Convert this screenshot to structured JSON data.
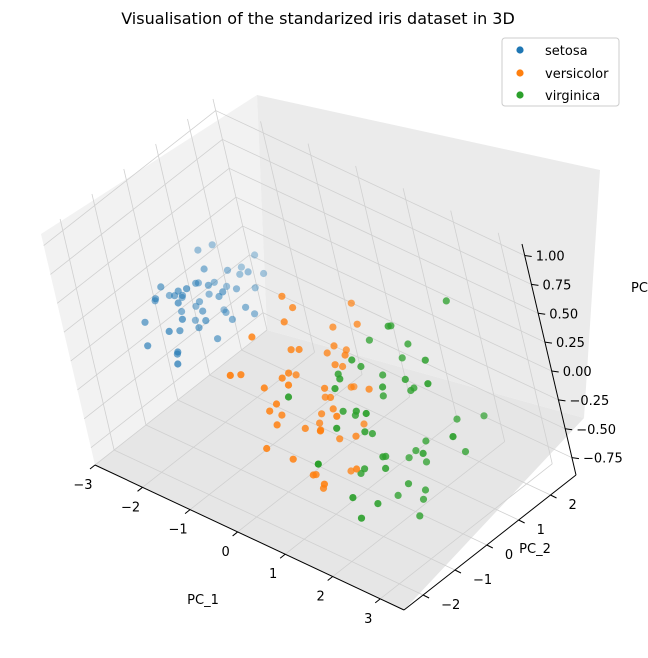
{
  "chart_data": {
    "type": "scatter",
    "projection": "3d",
    "title": "Visualisation of the standarized iris dataset in 3D",
    "xlabel": "PC_1",
    "ylabel": "PC_2",
    "zlabel": "PC",
    "xlim": [
      -3,
      3.5
    ],
    "ylim": [
      -2.6,
      2.8
    ],
    "zlim": [
      -0.9,
      1.1
    ],
    "xticks": [
      "−3",
      "−2",
      "−1",
      "0",
      "1",
      "2",
      "3"
    ],
    "yticks": [
      "−2",
      "−1",
      "0",
      "1",
      "2"
    ],
    "zticks": [
      "−0.75",
      "−0.50",
      "−0.25",
      "0.00",
      "0.25",
      "0.50",
      "0.75",
      "1.00"
    ],
    "grid": true,
    "legend_position": "top-right",
    "series": [
      {
        "name": "setosa",
        "color": "#1f77b4",
        "points": [
          [
            -2.7,
            -0.3,
            0.1
          ],
          [
            -2.4,
            0.6,
            0.1
          ],
          [
            -2.9,
            -0.1,
            0.0
          ],
          [
            -2.6,
            0.2,
            -0.1
          ],
          [
            -2.2,
            -0.6,
            -0.2
          ],
          [
            -2.5,
            0.9,
            0.3
          ],
          [
            -2.1,
            0.2,
            0.0
          ],
          [
            -2.3,
            -0.3,
            -0.1
          ],
          [
            -2.0,
            0.4,
            0.2
          ],
          [
            -2.1,
            0.0,
            -0.1
          ],
          [
            -2.3,
            0.7,
            0.0
          ],
          [
            -2.2,
            0.3,
            0.2
          ],
          [
            -1.9,
            0.5,
            0.1
          ],
          [
            -2.5,
            0.4,
            -0.2
          ],
          [
            -2.0,
            -0.2,
            0.3
          ],
          [
            -2.4,
            0.1,
            0.1
          ],
          [
            -1.8,
            0.6,
            -0.1
          ],
          [
            -2.6,
            0.3,
            0.0
          ],
          [
            -2.2,
            0.8,
            0.1
          ],
          [
            -2.0,
            1.0,
            0.2
          ],
          [
            -1.9,
            0.2,
            -0.2
          ],
          [
            -2.1,
            0.5,
            0.3
          ],
          [
            -2.3,
            -0.1,
            0.2
          ],
          [
            -2.0,
            0.7,
            -0.1
          ],
          [
            -1.8,
            0.9,
            0.1
          ],
          [
            -1.7,
            0.4,
            0.2
          ],
          [
            -2.2,
            1.1,
            0.0
          ],
          [
            -2.4,
            -0.4,
            -0.3
          ],
          [
            -1.6,
            0.8,
            0.0
          ],
          [
            -2.0,
            1.3,
            0.1
          ],
          [
            -1.9,
            0.0,
            0.0
          ],
          [
            -2.7,
            -0.8,
            -0.2
          ],
          [
            -2.5,
            0.5,
            -0.1
          ],
          [
            -2.8,
            0.2,
            0.0
          ],
          [
            -2.0,
            -0.5,
            0.1
          ],
          [
            -1.7,
            1.2,
            0.2
          ],
          [
            -2.1,
            1.5,
            0.1
          ],
          [
            -1.8,
            1.4,
            0.0
          ],
          [
            -2.3,
            1.0,
            -0.2
          ],
          [
            -2.6,
            -0.2,
            0.2
          ],
          [
            -2.9,
            -0.5,
            -0.1
          ],
          [
            -2.4,
            1.2,
            0.3
          ],
          [
            -2.2,
            -0.7,
            0.0
          ],
          [
            -1.9,
            1.7,
            0.2
          ],
          [
            -1.6,
            1.0,
            -0.1
          ],
          [
            -2.0,
            -0.9,
            -0.2
          ],
          [
            -2.5,
            0.0,
            0.1
          ],
          [
            -2.1,
            -0.4,
            0.2
          ],
          [
            -1.7,
            1.6,
            0.1
          ],
          [
            -2.3,
            0.4,
            0.0
          ]
        ]
      },
      {
        "name": "versicolor",
        "color": "#ff7f0e",
        "points": [
          [
            1.1,
            0.6,
            0.6
          ],
          [
            0.8,
            0.3,
            0.4
          ],
          [
            1.3,
            0.4,
            0.5
          ],
          [
            0.3,
            -0.8,
            0.1
          ],
          [
            1.0,
            -0.1,
            0.2
          ],
          [
            0.4,
            -0.5,
            0.3
          ],
          [
            0.9,
            0.1,
            0.3
          ],
          [
            -0.3,
            -1.2,
            0.1
          ],
          [
            0.9,
            0.3,
            -0.1
          ],
          [
            0.0,
            -1.0,
            0.0
          ],
          [
            -0.2,
            -1.6,
            0.2
          ],
          [
            0.5,
            0.0,
            -0.2
          ],
          [
            0.5,
            -0.9,
            0.1
          ],
          [
            0.8,
            -0.2,
            -0.1
          ],
          [
            0.2,
            -0.3,
            0.0
          ],
          [
            0.9,
            0.4,
            0.2
          ],
          [
            0.5,
            -0.2,
            -0.3
          ],
          [
            0.3,
            -0.6,
            0.1
          ],
          [
            1.0,
            -0.9,
            -0.2
          ],
          [
            0.2,
            -1.0,
            -0.1
          ],
          [
            1.1,
            -0.1,
            -0.4
          ],
          [
            0.5,
            -0.4,
            0.3
          ],
          [
            1.2,
            -0.6,
            -0.1
          ],
          [
            0.8,
            -0.3,
            0.0
          ],
          [
            0.7,
            0.1,
            0.2
          ],
          [
            0.9,
            0.2,
            0.1
          ],
          [
            1.2,
            0.0,
            0.3
          ],
          [
            1.4,
            0.2,
            0.0
          ],
          [
            0.8,
            -0.2,
            -0.2
          ],
          [
            0.0,
            -0.7,
            -0.3
          ],
          [
            0.1,
            -1.0,
            -0.3
          ],
          [
            0.0,
            -1.0,
            -0.2
          ],
          [
            0.3,
            -0.5,
            -0.4
          ],
          [
            1.2,
            -0.4,
            -0.6
          ],
          [
            0.4,
            -0.2,
            -0.4
          ],
          [
            0.7,
            0.6,
            -0.2
          ],
          [
            1.0,
            0.3,
            -0.4
          ],
          [
            0.8,
            -0.9,
            -0.7
          ],
          [
            0.3,
            -0.1,
            -0.5
          ],
          [
            0.2,
            -0.9,
            -0.6
          ],
          [
            0.5,
            -0.8,
            -0.7
          ],
          [
            0.7,
            -0.1,
            -0.5
          ],
          [
            0.3,
            -0.5,
            -0.8
          ],
          [
            -0.1,
            -1.2,
            -0.5
          ],
          [
            0.4,
            -0.5,
            -0.9
          ],
          [
            0.3,
            -0.4,
            0.5
          ],
          [
            0.4,
            -0.2,
            0.6
          ],
          [
            0.7,
            0.0,
            -0.8
          ],
          [
            -0.1,
            -0.9,
            0.4
          ],
          [
            0.3,
            -0.3,
            0.7
          ]
        ]
      },
      {
        "name": "virginica",
        "color": "#2ca02c",
        "points": [
          [
            2.0,
            0.5,
            0.6
          ],
          [
            1.4,
            -0.7,
            0.2
          ],
          [
            2.2,
            0.2,
            0.7
          ],
          [
            1.6,
            -0.3,
            0.4
          ],
          [
            2.0,
            -0.1,
            0.2
          ],
          [
            2.8,
            0.3,
            0.5
          ],
          [
            0.7,
            -1.2,
            0.1
          ],
          [
            2.4,
            0.1,
            0.3
          ],
          [
            2.0,
            -0.7,
            0.1
          ],
          [
            2.6,
            1.0,
            -0.2
          ],
          [
            1.5,
            0.4,
            0.4
          ],
          [
            1.6,
            -0.5,
            0.0
          ],
          [
            1.8,
            0.2,
            0.2
          ],
          [
            1.4,
            -0.9,
            -0.1
          ],
          [
            1.6,
            -0.4,
            -0.2
          ],
          [
            1.7,
            0.2,
            0.0
          ],
          [
            1.6,
            -0.1,
            0.3
          ],
          [
            3.0,
            1.0,
            0.9
          ],
          [
            3.3,
            0.0,
            0.0
          ],
          [
            1.3,
            -1.5,
            -0.3
          ],
          [
            2.2,
            0.5,
            0.1
          ],
          [
            1.2,
            -0.4,
            -0.1
          ],
          [
            3.0,
            0.0,
            0.4
          ],
          [
            1.3,
            -0.4,
            0.2
          ],
          [
            2.0,
            0.6,
            0.3
          ],
          [
            2.3,
            0.5,
            0.5
          ],
          [
            1.2,
            -0.3,
            0.2
          ],
          [
            1.2,
            -0.1,
            -0.2
          ],
          [
            1.8,
            -0.3,
            -0.4
          ],
          [
            2.2,
            0.4,
            0.1
          ],
          [
            2.5,
            0.0,
            -0.3
          ],
          [
            2.9,
            1.4,
            -0.2
          ],
          [
            1.8,
            -0.3,
            -0.5
          ],
          [
            1.3,
            -0.3,
            -0.6
          ],
          [
            1.4,
            -0.9,
            -0.7
          ],
          [
            2.8,
            0.8,
            -0.4
          ],
          [
            1.7,
            0.5,
            -0.6
          ],
          [
            1.6,
            0.0,
            -0.5
          ],
          [
            1.1,
            -0.2,
            -0.7
          ],
          [
            2.0,
            0.4,
            -0.8
          ],
          [
            1.9,
            0.4,
            -0.9
          ],
          [
            1.9,
            0.2,
            -1.0
          ],
          [
            1.4,
            -0.8,
            -0.9
          ],
          [
            2.1,
            0.6,
            -0.4
          ],
          [
            2.0,
            0.6,
            -0.6
          ],
          [
            1.9,
            0.1,
            -0.7
          ],
          [
            1.6,
            -0.5,
            -0.8
          ],
          [
            1.5,
            0.2,
            -0.9
          ],
          [
            1.9,
            0.5,
            -0.5
          ],
          [
            1.5,
            -0.1,
            -0.3
          ]
        ]
      }
    ]
  }
}
